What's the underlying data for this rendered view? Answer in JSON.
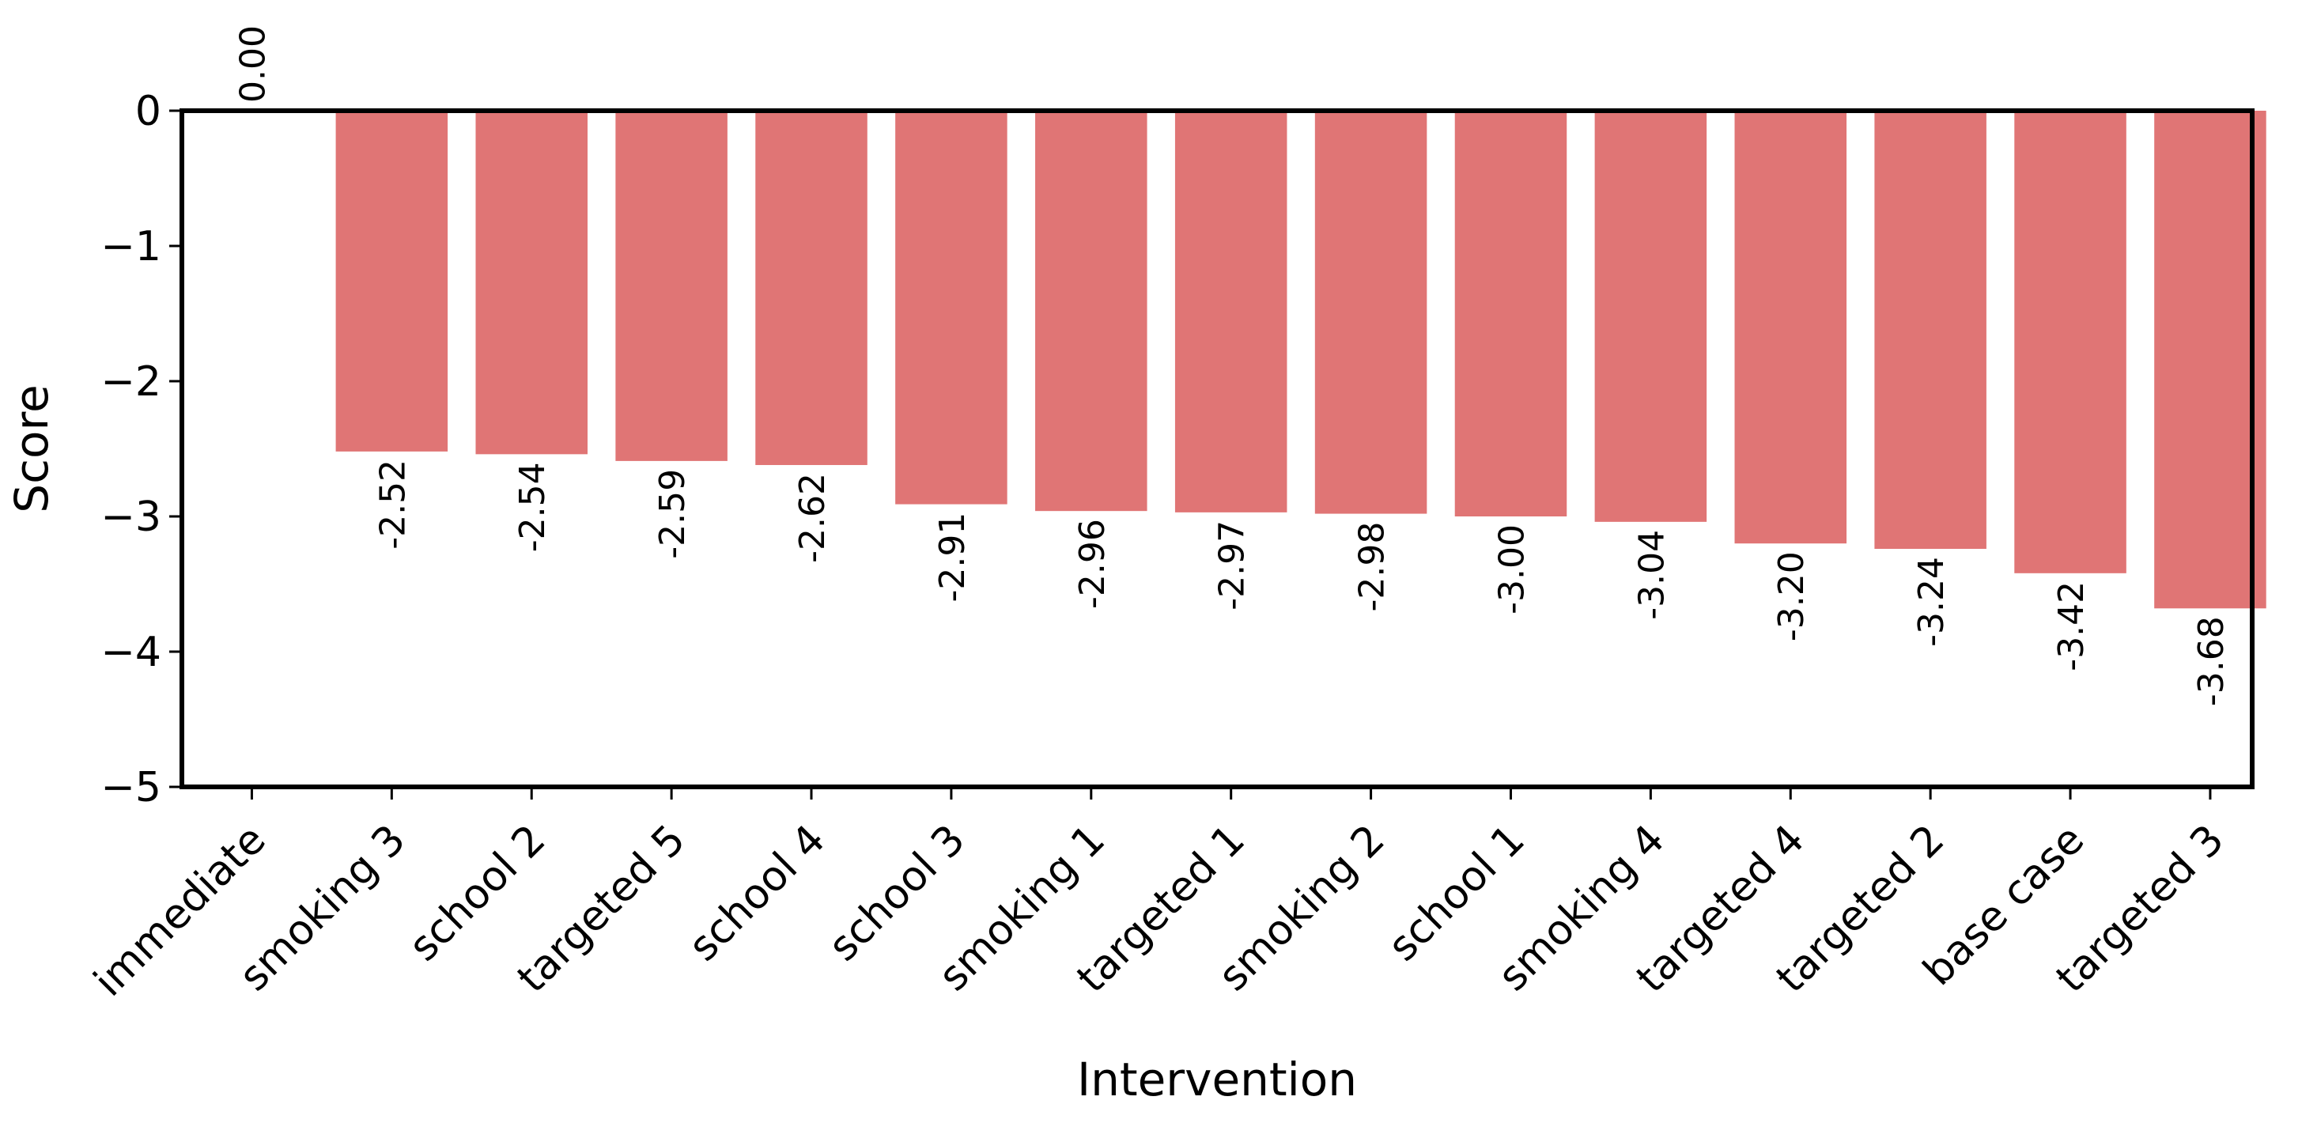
{
  "chart_data": {
    "type": "bar",
    "title": "",
    "xlabel": "Intervention",
    "ylabel": "Score",
    "ylim": [
      -5,
      0
    ],
    "yticks": [
      0,
      -1,
      -2,
      -3,
      -4,
      -5
    ],
    "ytick_labels": [
      "0",
      "−1",
      "−2",
      "−3",
      "−4",
      "−5"
    ],
    "categories": [
      "immediate",
      "smoking 3",
      "school 2",
      "targeted 5",
      "school 4",
      "school 3",
      "smoking 1",
      "targeted 1",
      "smoking 2",
      "school 1",
      "smoking 4",
      "targeted 4",
      "targeted 2",
      "base case",
      "targeted 3"
    ],
    "values": [
      0.0,
      -2.52,
      -2.54,
      -2.59,
      -2.62,
      -2.91,
      -2.96,
      -2.97,
      -2.98,
      -3.0,
      -3.04,
      -3.2,
      -3.24,
      -3.42,
      -3.68
    ],
    "value_labels": [
      "0.00",
      "-2.52",
      "-2.54",
      "-2.59",
      "-2.62",
      "-2.91",
      "-2.96",
      "-2.97",
      "-2.98",
      "-3.00",
      "-3.04",
      "-3.20",
      "-3.24",
      "-3.42",
      "-3.68"
    ],
    "bar_color": "#e07575",
    "grid": false,
    "legend": "none"
  }
}
